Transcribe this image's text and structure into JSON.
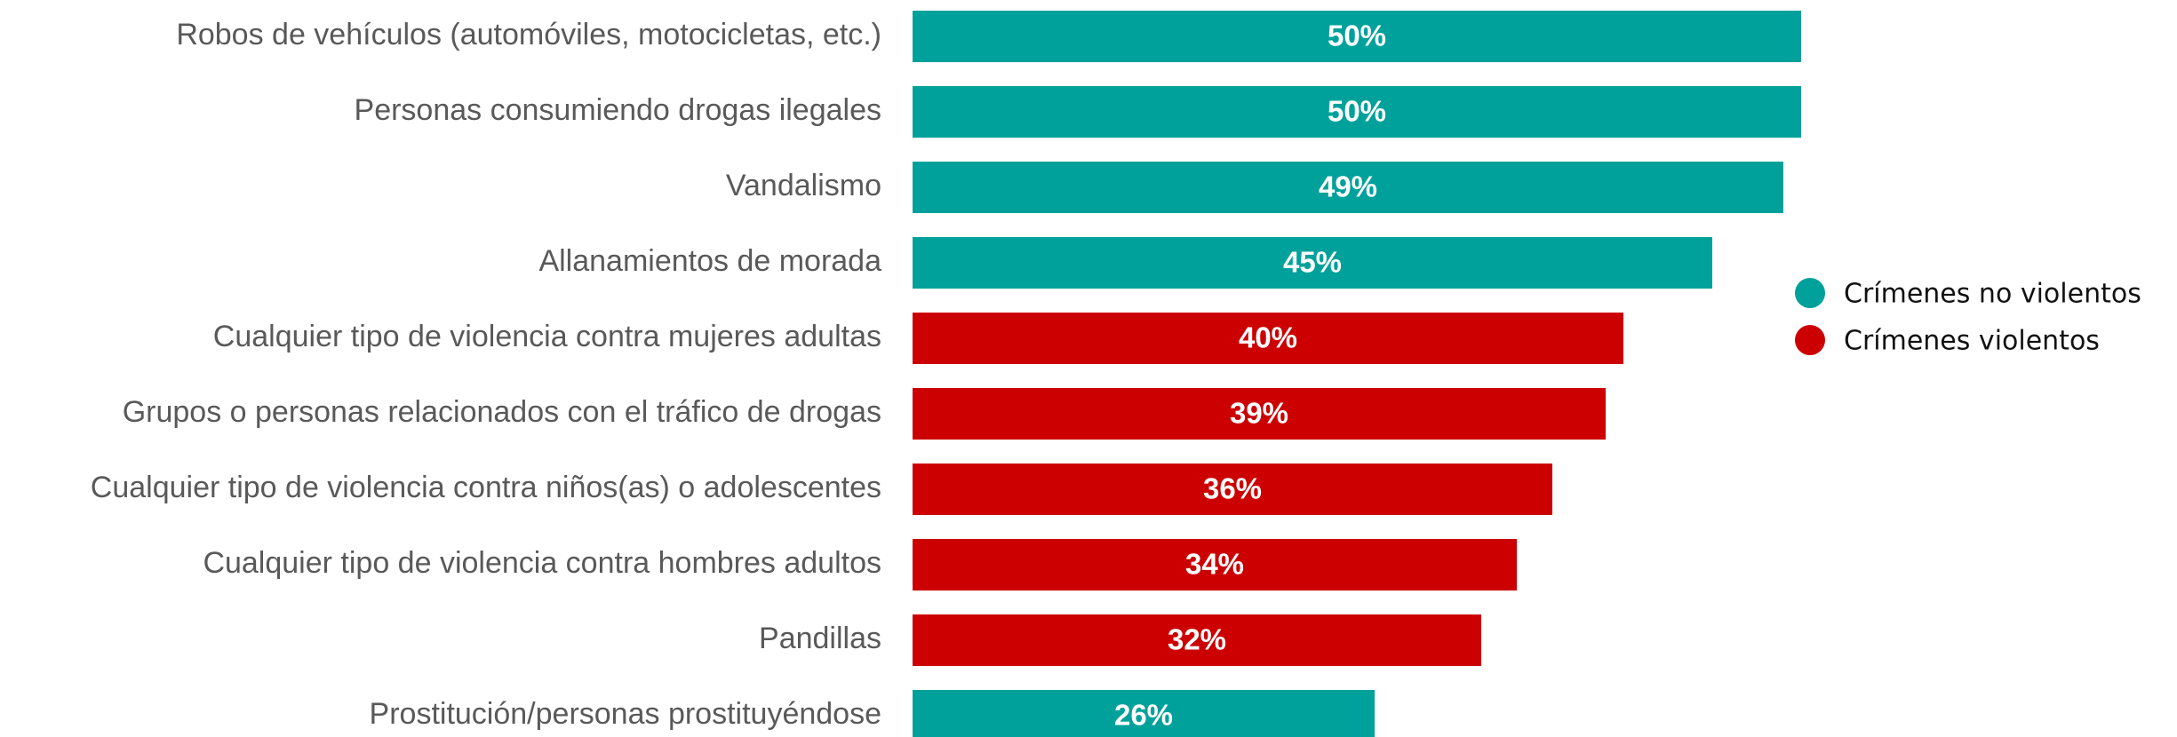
{
  "chart_data": {
    "type": "bar",
    "categories": [
      "Robos de vehículos (automóviles, motocicletas, etc.)",
      "Personas consumiendo drogas ilegales",
      "Vandalismo",
      "Allanamientos de morada",
      "Cualquier tipo de violencia contra mujeres adultas",
      "Grupos o personas relacionados con el tráfico de drogas",
      "Cualquier tipo de violencia contra niños(as) o adolescentes",
      "Cualquier tipo de violencia contra hombres adultos",
      "Pandillas",
      "Prostitución/personas prostituyéndose"
    ],
    "series": [
      {
        "name": "Crímenes no violentos",
        "color": "#00a19a",
        "values": [
          50,
          50,
          49,
          45,
          null,
          null,
          null,
          null,
          null,
          26
        ],
        "value_labels": [
          "50%",
          "50%",
          "49%",
          "45%",
          null,
          null,
          null,
          null,
          null,
          "26%"
        ]
      },
      {
        "name": "Crímenes violentos",
        "color": "#cc0000",
        "values": [
          null,
          null,
          null,
          null,
          40,
          39,
          36,
          34,
          32,
          null
        ],
        "value_labels": [
          null,
          null,
          null,
          null,
          "40%",
          "39%",
          "36%",
          "34%",
          "32%",
          null
        ]
      }
    ],
    "legend": "right"
  }
}
